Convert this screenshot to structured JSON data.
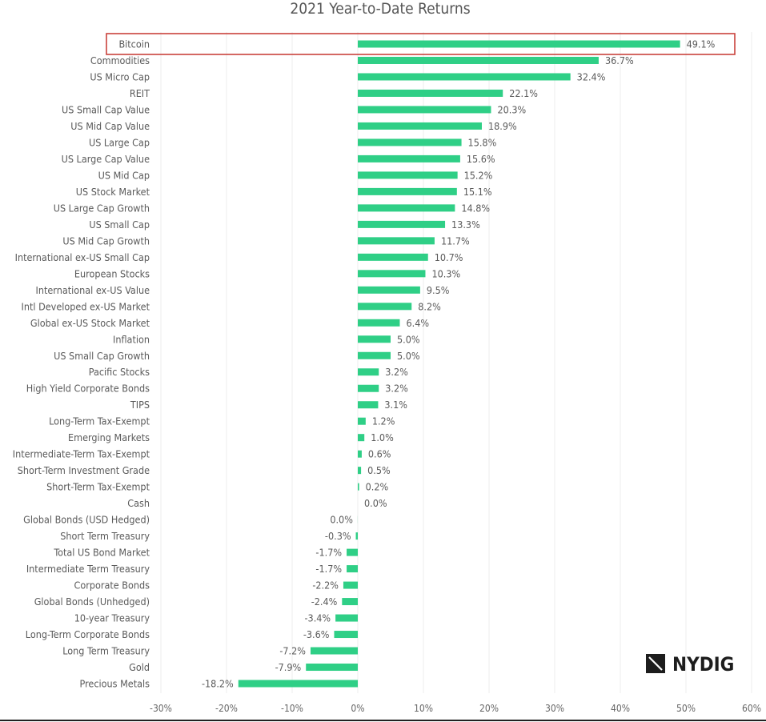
{
  "chart_data": {
    "type": "bar",
    "orientation": "horizontal",
    "title": "2021 Year-to-Date Returns",
    "xlabel": "",
    "ylabel": "",
    "xlim": [
      -30,
      60
    ],
    "x_ticks": [
      "-30%",
      "-20%",
      "-10%",
      "0%",
      "10%",
      "20%",
      "30%",
      "40%",
      "50%",
      "60%"
    ],
    "grid": true,
    "highlighted_category": "Bitcoin",
    "bar_color": "#2fcf86",
    "highlight_color": "#c9423c",
    "categories": [
      "Bitcoin",
      "Commodities",
      "US Micro Cap",
      "REIT",
      "US Small Cap Value",
      "US Mid Cap Value",
      "US Large Cap",
      "US Large Cap Value",
      "US Mid Cap",
      "US Stock Market",
      "US Large Cap Growth",
      "US Small Cap",
      "US Mid Cap Growth",
      "International ex-US Small Cap",
      "European Stocks",
      "International ex-US Value",
      "Intl Developed ex-US Market",
      "Global ex-US Stock Market",
      "Inflation",
      "US Small Cap Growth",
      "Pacific Stocks",
      "High Yield Corporate Bonds",
      "TIPS",
      "Long-Term Tax-Exempt",
      "Emerging Markets",
      "Intermediate-Term Tax-Exempt",
      "Short-Term Investment Grade",
      "Short-Term Tax-Exempt",
      "Cash",
      "Global Bonds (USD Hedged)",
      "Short Term Treasury",
      "Total US Bond Market",
      "Intermediate Term Treasury",
      "Corporate Bonds",
      "Global Bonds (Unhedged)",
      "10-year Treasury",
      "Long-Term Corporate Bonds",
      "Long Term Treasury",
      "Gold",
      "Precious Metals"
    ],
    "values": [
      49.1,
      36.7,
      32.4,
      22.1,
      20.3,
      18.9,
      15.8,
      15.6,
      15.2,
      15.1,
      14.8,
      13.3,
      11.7,
      10.7,
      10.3,
      9.5,
      8.2,
      6.4,
      5.0,
      5.0,
      3.2,
      3.2,
      3.1,
      1.2,
      1.0,
      0.6,
      0.5,
      0.2,
      0.0,
      -0.01,
      -0.3,
      -1.7,
      -1.7,
      -2.2,
      -2.4,
      -3.4,
      -3.6,
      -7.2,
      -7.9,
      -18.2
    ],
    "data_labels": [
      "49.1%",
      "36.7%",
      "32.4%",
      "22.1%",
      "20.3%",
      "18.9%",
      "15.8%",
      "15.6%",
      "15.2%",
      "15.1%",
      "14.8%",
      "13.3%",
      "11.7%",
      "10.7%",
      "10.3%",
      "9.5%",
      "8.2%",
      "6.4%",
      "5.0%",
      "5.0%",
      "3.2%",
      "3.2%",
      "3.1%",
      "1.2%",
      "1.0%",
      "0.6%",
      "0.5%",
      "0.2%",
      "0.0%",
      "0.0%",
      "-0.3%",
      "-1.7%",
      "-1.7%",
      "-2.2%",
      "-2.4%",
      "-3.4%",
      "-3.6%",
      "-7.2%",
      "-7.9%",
      "-18.2%"
    ]
  },
  "logo": {
    "text": "NYDIG"
  }
}
